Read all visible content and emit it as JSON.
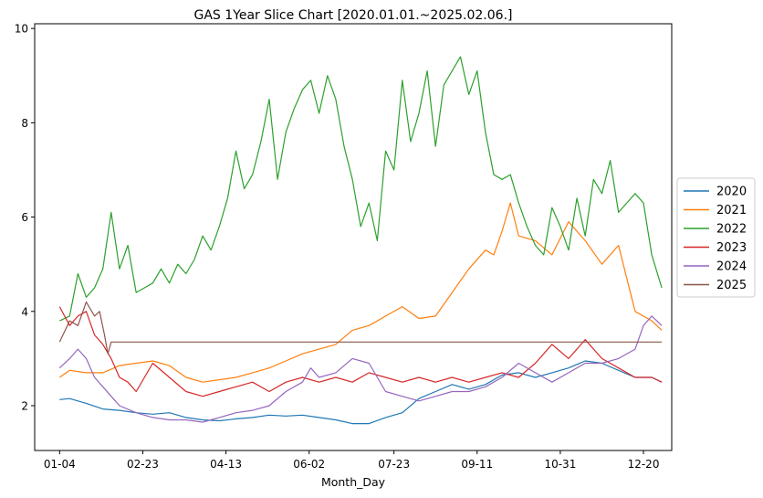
{
  "chart_data": {
    "type": "line",
    "title": "GAS 1Year Slice Chart [2020.01.01.~2025.02.06.]",
    "xlabel": "Month_Day",
    "ylabel": "",
    "x_tick_labels": [
      "01-04",
      "02-23",
      "04-13",
      "06-02",
      "07-23",
      "09-11",
      "10-31",
      "12-20"
    ],
    "x_ticks_day": [
      4,
      54,
      104,
      154,
      205,
      255,
      305,
      355
    ],
    "y_ticks": [
      2,
      4,
      6,
      8,
      10
    ],
    "xlim": [
      -11,
      372
    ],
    "ylim": [
      1.05,
      10.1
    ],
    "legend_position": "right-outside",
    "grid": false,
    "series": [
      {
        "name": "2020",
        "color": "#1f77b4",
        "x": [
          4,
          10,
          20,
          30,
          40,
          50,
          60,
          70,
          80,
          90,
          100,
          110,
          120,
          130,
          140,
          150,
          160,
          170,
          180,
          190,
          200,
          210,
          220,
          230,
          240,
          250,
          260,
          270,
          280,
          290,
          300,
          310,
          320,
          330,
          340,
          350,
          360,
          366
        ],
        "y": [
          2.13,
          2.15,
          2.05,
          1.93,
          1.9,
          1.85,
          1.82,
          1.85,
          1.75,
          1.7,
          1.68,
          1.72,
          1.75,
          1.8,
          1.78,
          1.8,
          1.75,
          1.7,
          1.62,
          1.62,
          1.75,
          1.85,
          2.15,
          2.3,
          2.45,
          2.35,
          2.45,
          2.65,
          2.7,
          2.6,
          2.7,
          2.8,
          2.95,
          2.9,
          2.75,
          2.6,
          2.6,
          2.5
        ]
      },
      {
        "name": "2021",
        "color": "#ff7f0e",
        "x": [
          4,
          10,
          20,
          30,
          40,
          50,
          60,
          70,
          80,
          90,
          100,
          110,
          120,
          130,
          140,
          150,
          160,
          170,
          180,
          190,
          200,
          210,
          220,
          230,
          240,
          250,
          260,
          265,
          270,
          275,
          280,
          290,
          300,
          310,
          320,
          330,
          340,
          350,
          360,
          366
        ],
        "y": [
          2.6,
          2.75,
          2.7,
          2.7,
          2.85,
          2.9,
          2.95,
          2.85,
          2.6,
          2.5,
          2.55,
          2.6,
          2.7,
          2.8,
          2.95,
          3.1,
          3.2,
          3.3,
          3.6,
          3.7,
          3.9,
          4.1,
          3.85,
          3.9,
          4.4,
          4.9,
          5.3,
          5.2,
          5.7,
          6.3,
          5.6,
          5.5,
          5.2,
          5.9,
          5.5,
          5.0,
          5.4,
          4.0,
          3.8,
          3.6
        ]
      },
      {
        "name": "2022",
        "color": "#2ca02c",
        "x": [
          4,
          10,
          15,
          20,
          25,
          30,
          35,
          40,
          45,
          50,
          55,
          60,
          65,
          70,
          75,
          80,
          85,
          90,
          95,
          100,
          105,
          110,
          115,
          120,
          125,
          130,
          135,
          140,
          145,
          150,
          155,
          160,
          165,
          170,
          175,
          180,
          185,
          190,
          195,
          200,
          205,
          210,
          215,
          220,
          225,
          230,
          235,
          240,
          245,
          250,
          255,
          260,
          265,
          270,
          275,
          280,
          285,
          290,
          295,
          300,
          305,
          310,
          315,
          320,
          325,
          330,
          335,
          340,
          345,
          350,
          355,
          360,
          366
        ],
        "y": [
          3.8,
          3.9,
          4.8,
          4.3,
          4.5,
          4.9,
          6.1,
          4.9,
          5.4,
          4.4,
          4.5,
          4.6,
          4.9,
          4.6,
          5.0,
          4.8,
          5.1,
          5.6,
          5.3,
          5.8,
          6.4,
          7.4,
          6.6,
          6.9,
          7.6,
          8.5,
          6.8,
          7.8,
          8.3,
          8.7,
          8.9,
          8.2,
          9.0,
          8.5,
          7.5,
          6.8,
          5.8,
          6.3,
          5.5,
          7.4,
          7.0,
          8.9,
          7.6,
          8.2,
          9.1,
          7.5,
          8.8,
          9.1,
          9.4,
          8.6,
          9.1,
          7.8,
          6.9,
          6.8,
          6.9,
          6.3,
          5.8,
          5.4,
          5.2,
          6.2,
          5.8,
          5.3,
          6.4,
          5.6,
          6.8,
          6.5,
          7.2,
          6.1,
          6.3,
          6.5,
          6.3,
          5.2,
          4.5
        ]
      },
      {
        "name": "2023",
        "color": "#d62728",
        "x": [
          4,
          10,
          15,
          20,
          25,
          30,
          35,
          40,
          45,
          50,
          60,
          70,
          80,
          90,
          100,
          110,
          120,
          130,
          140,
          150,
          160,
          170,
          180,
          190,
          200,
          210,
          220,
          230,
          240,
          250,
          260,
          270,
          280,
          290,
          300,
          310,
          320,
          330,
          340,
          350,
          360,
          366
        ],
        "y": [
          4.1,
          3.7,
          3.9,
          4.0,
          3.5,
          3.3,
          3.0,
          2.6,
          2.5,
          2.3,
          2.9,
          2.6,
          2.3,
          2.2,
          2.3,
          2.4,
          2.5,
          2.3,
          2.5,
          2.6,
          2.5,
          2.6,
          2.5,
          2.7,
          2.6,
          2.5,
          2.6,
          2.5,
          2.6,
          2.5,
          2.6,
          2.7,
          2.6,
          2.9,
          3.3,
          3.0,
          3.4,
          3.0,
          2.8,
          2.6,
          2.6,
          2.5
        ]
      },
      {
        "name": "2024",
        "color": "#9467bd",
        "x": [
          4,
          10,
          15,
          20,
          25,
          30,
          35,
          40,
          50,
          60,
          70,
          80,
          90,
          100,
          110,
          120,
          130,
          140,
          150,
          155,
          160,
          170,
          180,
          190,
          200,
          210,
          220,
          230,
          240,
          250,
          260,
          270,
          280,
          290,
          300,
          310,
          320,
          330,
          340,
          350,
          355,
          360,
          366
        ],
        "y": [
          2.8,
          3.0,
          3.2,
          3.0,
          2.6,
          2.4,
          2.2,
          2.0,
          1.85,
          1.75,
          1.7,
          1.7,
          1.65,
          1.75,
          1.85,
          1.9,
          2.0,
          2.3,
          2.5,
          2.8,
          2.6,
          2.7,
          3.0,
          2.9,
          2.3,
          2.2,
          2.1,
          2.2,
          2.3,
          2.3,
          2.4,
          2.6,
          2.9,
          2.7,
          2.5,
          2.7,
          2.9,
          2.9,
          3.0,
          3.2,
          3.7,
          3.9,
          3.7
        ]
      },
      {
        "name": "2025",
        "color": "#8c564b",
        "x": [
          4,
          10,
          15,
          20,
          25,
          28,
          31,
          33,
          35,
          40,
          60,
          100,
          150,
          200,
          250,
          300,
          350,
          366
        ],
        "y": [
          3.35,
          3.8,
          3.7,
          4.2,
          3.9,
          4.0,
          3.5,
          3.1,
          3.35,
          3.35,
          3.35,
          3.35,
          3.35,
          3.35,
          3.35,
          3.35,
          3.35,
          3.35
        ]
      }
    ]
  }
}
